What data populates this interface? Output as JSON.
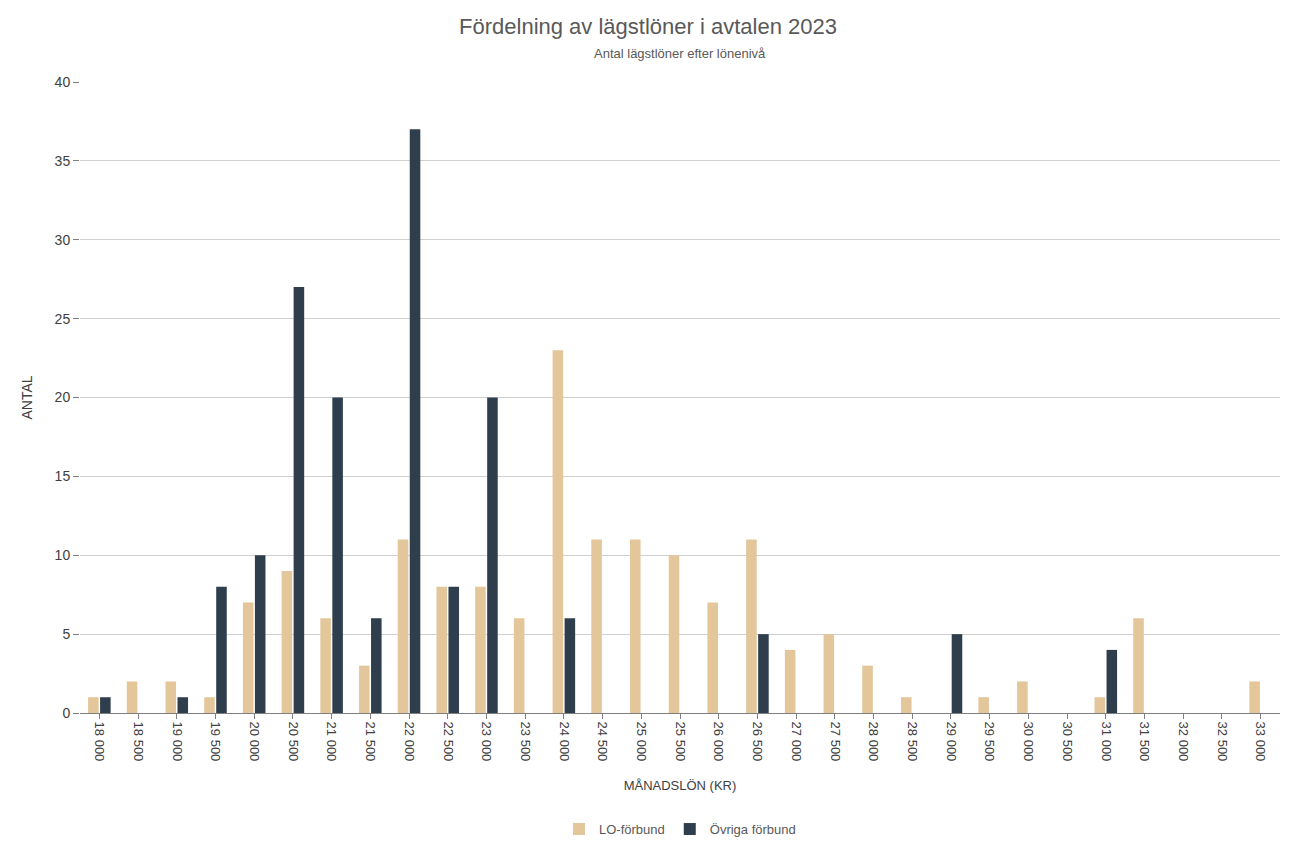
{
  "chart_data": {
    "type": "bar",
    "title": "Fördelning av lägstlöner i avtalen 2023",
    "subtitle": "Antal lägstlöner efter lönenivå",
    "x_label": "MÅNADSLÖN (KR)",
    "y_label": "ANTAL",
    "categories": [
      "18 000",
      "18 500",
      "19 000",
      "19 500",
      "20 000",
      "20 500",
      "21 000",
      "21 500",
      "22 000",
      "22 500",
      "23 000",
      "23 500",
      "24 000",
      "24 500",
      "25 000",
      "25 500",
      "26 000",
      "26 500",
      "27 000",
      "27 500",
      "28 000",
      "28 500",
      "29 000",
      "29 500",
      "30 000",
      "30 500",
      "31 000",
      "31 500",
      "32 000",
      "32 500",
      "33 000"
    ],
    "series": [
      {
        "name": "LO-förbund",
        "color": "#e3c699",
        "values": [
          1,
          2,
          2,
          1,
          7,
          9,
          6,
          3,
          11,
          8,
          8,
          6,
          23,
          11,
          11,
          10,
          7,
          11,
          4,
          5,
          3,
          1,
          0,
          1,
          2,
          0,
          1,
          6,
          0,
          0,
          2
        ]
      },
      {
        "name": "Övriga förbund",
        "color": "#2f3e4d",
        "values": [
          1,
          0,
          1,
          8,
          10,
          27,
          20,
          6,
          37,
          8,
          20,
          0,
          6,
          0,
          0,
          0,
          0,
          5,
          0,
          0,
          0,
          0,
          5,
          0,
          0,
          0,
          4,
          0,
          0,
          0,
          0
        ]
      }
    ],
    "ylim": [
      0,
      40
    ],
    "yticks": [
      0,
      5,
      10,
      15,
      20,
      25,
      30,
      35,
      40
    ],
    "grid": true,
    "legend": "bottom"
  }
}
